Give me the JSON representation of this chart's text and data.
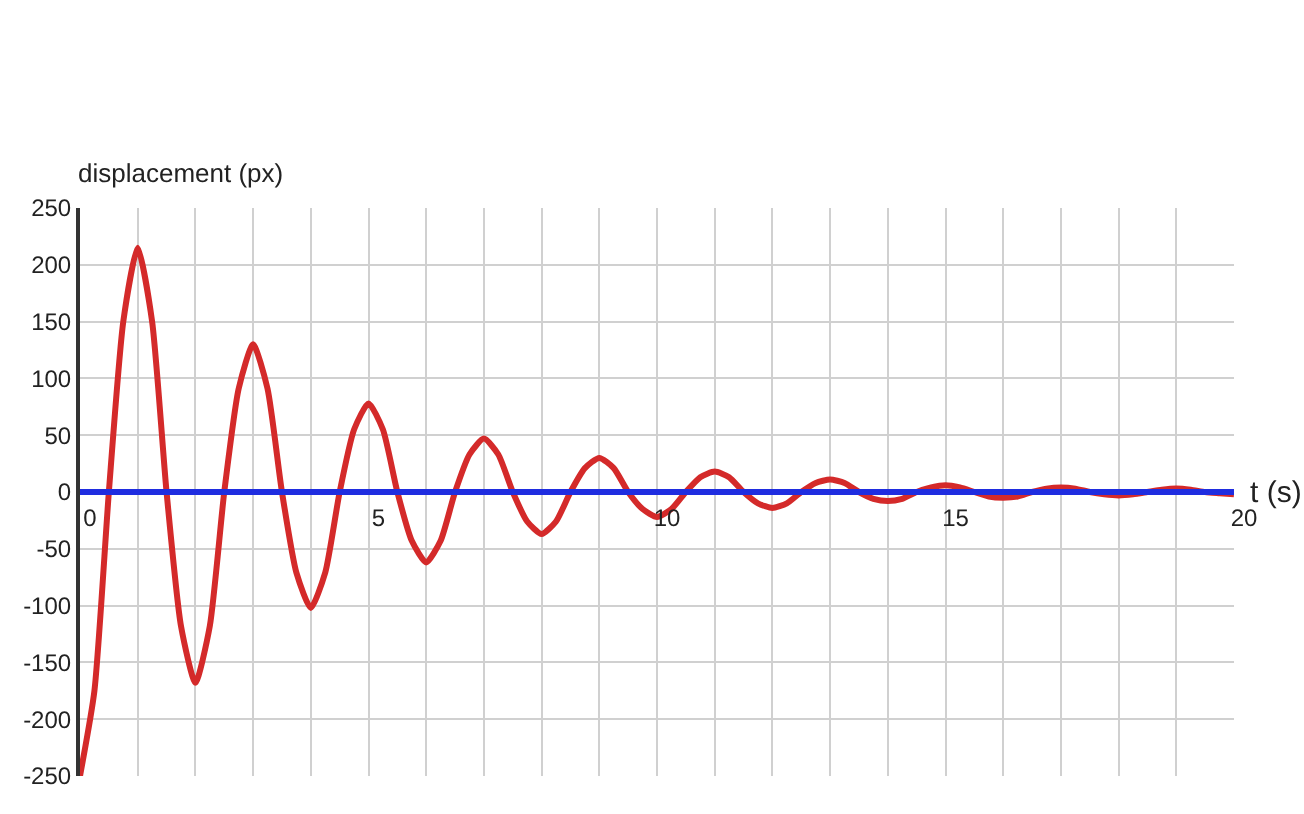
{
  "chart_data": {
    "type": "line",
    "xlabel": "t (s)",
    "ylabel": "displacement (px)",
    "x": [
      0,
      0.25,
      0.5,
      0.75,
      1,
      1.25,
      1.5,
      1.75,
      2,
      2.25,
      2.5,
      2.75,
      3,
      3.25,
      3.5,
      3.75,
      4,
      4.25,
      4.5,
      4.75,
      5,
      5.25,
      5.5,
      5.75,
      6,
      6.25,
      6.5,
      6.75,
      7,
      7.25,
      7.5,
      7.75,
      8,
      8.25,
      8.5,
      8.75,
      9,
      9.25,
      9.5,
      9.75,
      10,
      10.25,
      10.5,
      10.75,
      11,
      11.25,
      11.5,
      11.75,
      12,
      12.25,
      12.5,
      12.75,
      13,
      13.25,
      13.5,
      13.75,
      14,
      14.25,
      14.5,
      14.75,
      15,
      15.25,
      15.5,
      15.75,
      16,
      16.25,
      16.5,
      16.75,
      17,
      17.25,
      17.5,
      17.75,
      18,
      18.25,
      18.5,
      18.75,
      19,
      19.25,
      19.5,
      19.75,
      20
    ],
    "series": [
      {
        "color": "#d42a2a",
        "values": [
          -250,
          -175,
          0,
          150,
          215,
          150,
          0,
          -118,
          -168,
          -118,
          0,
          91,
          130,
          91,
          0,
          -71,
          -102,
          -71,
          0,
          55,
          78,
          55,
          0,
          -43,
          -62,
          -43,
          0,
          33,
          47,
          33,
          0,
          -26,
          -37,
          -26,
          0,
          21,
          30,
          21,
          0,
          -15,
          -22,
          -15,
          0,
          13,
          18,
          13,
          0,
          -10,
          -14,
          -10,
          0,
          8,
          11,
          8,
          0,
          -6,
          -8,
          -6,
          0,
          4,
          6,
          4,
          0,
          -4,
          -5,
          -4,
          0,
          3,
          4,
          3,
          0,
          -2,
          -3,
          -2,
          0,
          2,
          3,
          2,
          0,
          -1,
          -2
        ]
      },
      {
        "color": "#1f2de0",
        "x": [
          0,
          20
        ],
        "values": [
          0,
          0
        ]
      }
    ],
    "xlim": [
      0,
      20
    ],
    "xticks": [
      0,
      {
        "value": 1,
        "label": null
      },
      {
        "value": 2,
        "label": null
      },
      {
        "value": 3,
        "label": null
      },
      {
        "value": 4,
        "label": null
      },
      5,
      {
        "value": 6,
        "label": null
      },
      {
        "value": 7,
        "label": null
      },
      {
        "value": 8,
        "label": null
      },
      {
        "value": 9,
        "label": null
      },
      10,
      {
        "value": 11,
        "label": null
      },
      {
        "value": 12,
        "label": null
      },
      {
        "value": 13,
        "label": null
      },
      {
        "value": 14,
        "label": null
      },
      15,
      {
        "value": 16,
        "label": null
      },
      {
        "value": 17,
        "label": null
      },
      {
        "value": 18,
        "label": null
      },
      {
        "value": 19,
        "label": null
      },
      20
    ],
    "ylim": [
      -250,
      250
    ],
    "yticks": [
      -250,
      -200,
      -150,
      -100,
      -50,
      0,
      50,
      100,
      150,
      200,
      250
    ],
    "grid": true,
    "line_style": "solid"
  }
}
